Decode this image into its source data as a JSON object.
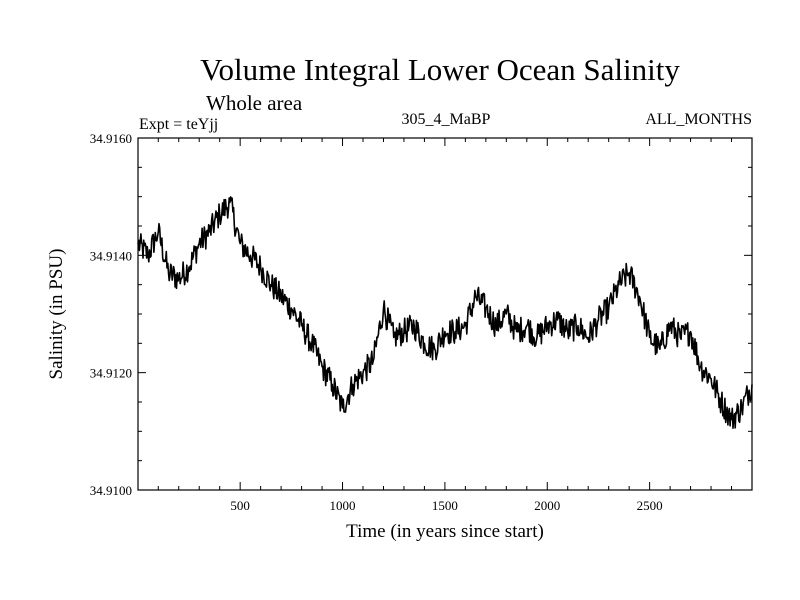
{
  "chart_data": {
    "type": "line",
    "title": "Volume Integral Lower Ocean Salinity",
    "subtitle": "Whole area",
    "expt_label": "Expt = teYjj",
    "run_label": "305_4_MaBP",
    "months_label": "ALL_MONTHS",
    "xlabel": "Time (in years since start)",
    "ylabel": "Salinity (in PSU)",
    "xlim": [
      1,
      3000
    ],
    "ylim": [
      34.91,
      34.916
    ],
    "x_ticks": [
      500,
      1000,
      1500,
      2000,
      2500
    ],
    "x_tick_labels": [
      "500",
      "1000",
      "1500",
      "2000",
      "2500"
    ],
    "y_ticks": [
      34.91,
      34.912,
      34.914,
      34.916
    ],
    "y_tick_labels": [
      "34.9100",
      "34.9120",
      "34.9140",
      "34.9160"
    ],
    "series": [
      {
        "name": "Salinity",
        "color": "#000000",
        "x": [
          1,
          50,
          100,
          150,
          200,
          250,
          300,
          350,
          400,
          450,
          500,
          550,
          600,
          650,
          700,
          750,
          800,
          850,
          900,
          950,
          1000,
          1050,
          1100,
          1150,
          1200,
          1250,
          1300,
          1350,
          1400,
          1450,
          1500,
          1550,
          1600,
          1650,
          1700,
          1750,
          1800,
          1850,
          1900,
          1950,
          2000,
          2050,
          2100,
          2150,
          2200,
          2250,
          2300,
          2350,
          2400,
          2450,
          2500,
          2550,
          2600,
          2650,
          2700,
          2750,
          2800,
          2850,
          2900,
          2950,
          3000
        ],
        "y": [
          34.9142,
          34.914,
          34.9144,
          34.9137,
          34.9136,
          34.9138,
          34.9142,
          34.9144,
          34.9147,
          34.9149,
          34.9142,
          34.914,
          34.9138,
          34.9135,
          34.9133,
          34.9131,
          34.9128,
          34.9125,
          34.9121,
          34.9118,
          34.9114,
          34.9118,
          34.912,
          34.9122,
          34.9131,
          34.9126,
          34.9127,
          34.9128,
          34.9125,
          34.9124,
          34.9127,
          34.9127,
          34.9128,
          34.9133,
          34.9131,
          34.9128,
          34.913,
          34.9127,
          34.9128,
          34.9126,
          34.9128,
          34.9129,
          34.9127,
          34.9128,
          34.9126,
          34.9129,
          34.9131,
          34.9135,
          34.9137,
          34.9133,
          34.9126,
          34.9124,
          34.9128,
          34.9126,
          34.9127,
          34.9121,
          34.9119,
          34.9115,
          34.9112,
          34.9114,
          34.9118
        ]
      }
    ]
  }
}
